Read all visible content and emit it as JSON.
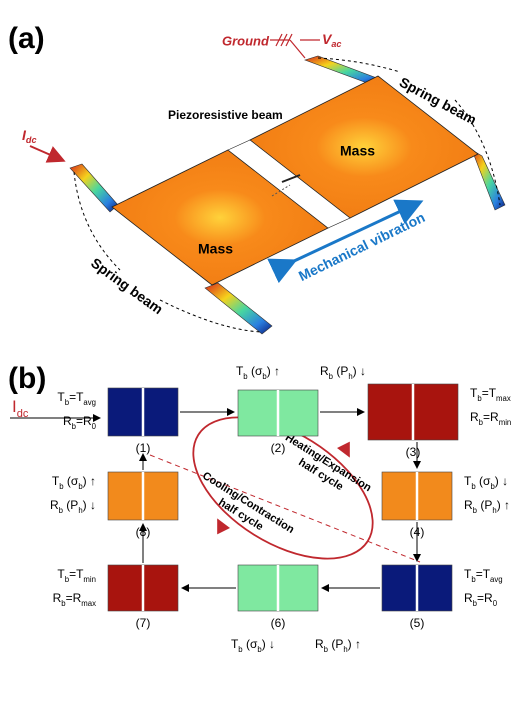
{
  "panel_a": {
    "label": "(a)",
    "ground": "Ground",
    "vac": [
      [
        "V",
        "ac"
      ]
    ],
    "idc": [
      [
        "I",
        "dc"
      ]
    ],
    "spring_beam_top": "Spring beam",
    "spring_beam_bottom": "Spring beam",
    "piezoresistive_beam": "Piezoresistive beam",
    "mass_right": "Mass",
    "mass_left": "Mass",
    "vibration": "Mechanical vibration"
  },
  "panel_b": {
    "label": "(b)",
    "idc": [
      [
        "I",
        "dc"
      ]
    ],
    "heating": [
      "Heating/Expansion",
      "half cycle"
    ],
    "cooling": [
      "Cooling/Contraction",
      "half cycle"
    ],
    "states": [
      {
        "number": "(1)",
        "color": "#0a1a7a",
        "annotations": [
          [
            [
              "T",
              "b"
            ],
            [
              "=T",
              "avg"
            ]
          ],
          [
            [
              "R",
              "b"
            ],
            [
              "=R",
              "0"
            ]
          ]
        ]
      },
      {
        "number": "(2)",
        "color": "#7fe8a0",
        "annotations": [
          [
            [
              "T",
              "b"
            ],
            [
              " (σ",
              "b"
            ],
            [
              ") ↑"
            ]
          ],
          [
            [
              "R",
              "b"
            ],
            [
              " (P",
              "h"
            ],
            [
              ") ↓"
            ]
          ]
        ]
      },
      {
        "number": "(3)",
        "color": "#a8140e",
        "annotations": [
          [
            [
              "T",
              "b"
            ],
            [
              "=T",
              "max"
            ]
          ],
          [
            [
              "R",
              "b"
            ],
            [
              "=R",
              "min"
            ]
          ]
        ]
      },
      {
        "number": "(4)",
        "color": "#f28a1c",
        "annotations": [
          [
            [
              "T",
              "b"
            ],
            [
              " (σ",
              "b"
            ],
            [
              ") ↓"
            ]
          ],
          [
            [
              "R",
              "b"
            ],
            [
              " (P",
              "h"
            ],
            [
              ") ↑"
            ]
          ]
        ]
      },
      {
        "number": "(5)",
        "color": "#0a1a7a",
        "annotations": [
          [
            [
              "T",
              "b"
            ],
            [
              "=T",
              "avg"
            ]
          ],
          [
            [
              "R",
              "b"
            ],
            [
              "=R",
              "0"
            ]
          ]
        ]
      },
      {
        "number": "(6)",
        "color": "#7fe8a0",
        "annotations": [
          [
            [
              "T",
              "b"
            ],
            [
              " (σ",
              "b"
            ],
            [
              ") ↓"
            ]
          ],
          [
            [
              "R",
              "b"
            ],
            [
              " (P",
              "h"
            ],
            [
              ") ↑"
            ]
          ]
        ]
      },
      {
        "number": "(7)",
        "color": "#a8140e",
        "annotations": [
          [
            [
              "T",
              "b"
            ],
            [
              "=T",
              "min"
            ]
          ],
          [
            [
              "R",
              "b"
            ],
            [
              "=R",
              "max"
            ]
          ]
        ]
      },
      {
        "number": "(8)",
        "color": "#f28a1c",
        "annotations": [
          [
            [
              "T",
              "b"
            ],
            [
              " (σ",
              "b"
            ],
            [
              ") ↑"
            ]
          ],
          [
            [
              "R",
              "b"
            ],
            [
              " (P",
              "h"
            ],
            [
              ") ↓"
            ]
          ]
        ]
      }
    ]
  }
}
